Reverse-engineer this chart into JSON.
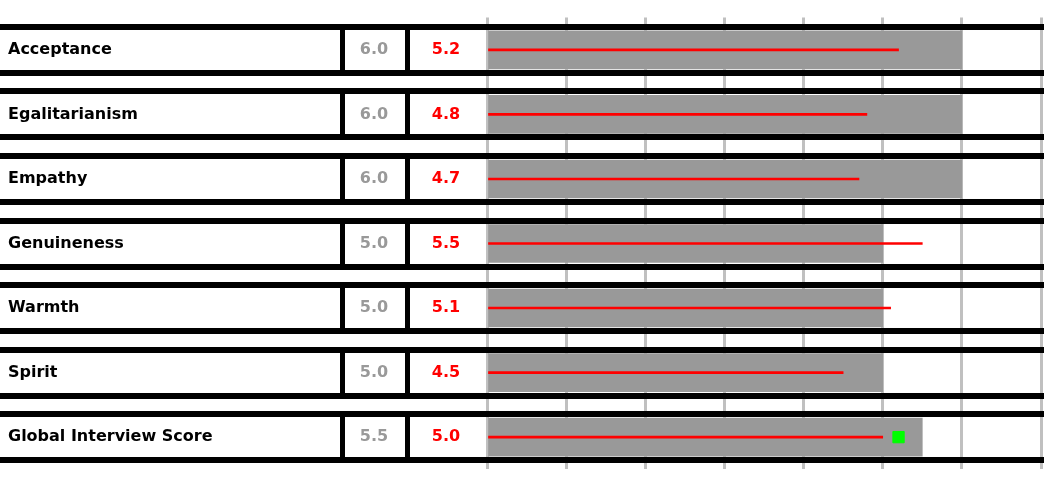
{
  "chart_data": {
    "type": "bar",
    "orientation": "horizontal",
    "categories": [
      "Acceptance",
      "Egalitarianism",
      "Empathy",
      "Genuineness",
      "Warmth",
      "Spirit",
      "Global Interview Score"
    ],
    "series": [
      {
        "color": "#999999",
        "values": [
          6.0,
          6.0,
          6.0,
          5.0,
          5.0,
          5.0,
          5.5
        ],
        "value_labels": [
          "6.0",
          "6.0",
          "6.0",
          "5.0",
          "5.0",
          "5.0",
          "5.5"
        ]
      },
      {
        "color": "#ff0000",
        "values": [
          5.2,
          4.8,
          4.7,
          5.5,
          5.1,
          4.5,
          5.0
        ],
        "value_labels": [
          "5.2",
          "4.8",
          "4.7",
          "5.5",
          "5.1",
          "4.5",
          "5.0"
        ]
      },
      {
        "type": "scatter",
        "color": "#00ff00",
        "values": [
          null,
          null,
          null,
          null,
          null,
          null,
          5.2
        ]
      }
    ],
    "xlim": [
      0,
      7
    ],
    "xticks": [
      {
        "value": 0,
        "label": null
      },
      {
        "value": 1,
        "label": null
      },
      {
        "value": 2,
        "label": null
      },
      {
        "value": 3,
        "label": null
      },
      {
        "value": 4,
        "label": null
      },
      {
        "value": 5,
        "label": null
      },
      {
        "value": 6,
        "label": null
      },
      {
        "value": 7,
        "label": null
      }
    ],
    "grid": "x",
    "tick_labels": "y",
    "marker": "square",
    "legend": false
  }
}
